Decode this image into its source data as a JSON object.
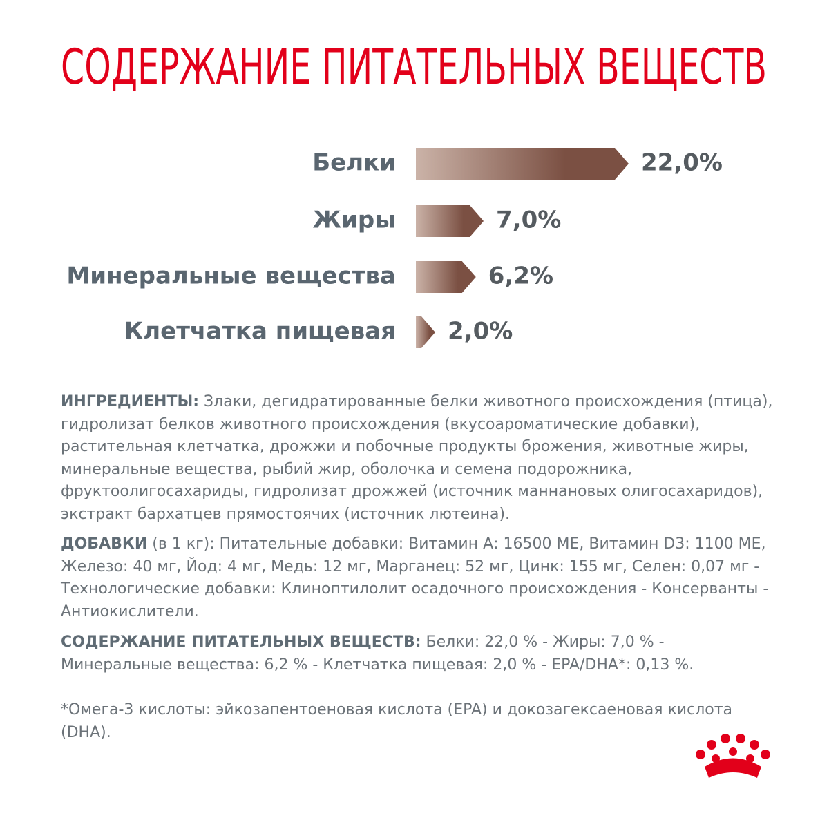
{
  "chart_data": {
    "type": "bar",
    "title": "СОДЕРЖАНИЕ ПИТАТЕЛЬНЫХ ВЕЩЕСТВ",
    "categories": [
      "Белки",
      "Жиры",
      "Минеральные вещества",
      "Клетчатка пищевая"
    ],
    "values": [
      22.0,
      7.0,
      6.2,
      2.0
    ],
    "value_labels": [
      "22,0%",
      "7,0%",
      "6,2%",
      "2,0%"
    ],
    "color": "#7b5043"
  },
  "ingredients": {
    "label": "ИНГРЕДИЕНТЫ:",
    "text": "Злаки, дегидратированные белки животного происхождения (птица), гидролизат белков животного происхождения (вкусоароматические добавки), растительная клетчатка, дрожжи и побочные продукты брожения, животные жиры, минеральные вещества, рыбий жир, оболочка и семена подорожника, фруктоолигосахариды, гидролизат дрожжей (источник маннановых олигосахаридов), экстракт бархатцев прямостоячих (источник лютеина)."
  },
  "additives": {
    "label": "ДОБАВКИ",
    "qualifier": "(в 1 кг):",
    "text": "Питательные добавки: Витамин А: 16500 МЕ, Витамин D3: 1100 МЕ, Железо: 40 мг, Йод: 4 мг, Медь: 12 мг, Марганец: 52 мг, Цинк: 155 мг, Селен: 0,07 мг - Технологические добавки: Клиноптилолит осадочного происхождения - Консерванты - Антиокислители."
  },
  "nutrients": {
    "label": "СОДЕРЖАНИЕ ПИТАТЕЛЬНЫХ ВЕЩЕСТВ:",
    "text": "Белки: 22,0 % - Жиры: 7,0 % - Минеральные вещества: 6,2 % - Клетчатка пищевая: 2,0 % - EPA/DHA*: 0,13 %."
  },
  "footnote": "*Омега-3 кислоты: эйкозапентоеновая кислота (EPA) и докозагексаеновая кислота (DHA)."
}
